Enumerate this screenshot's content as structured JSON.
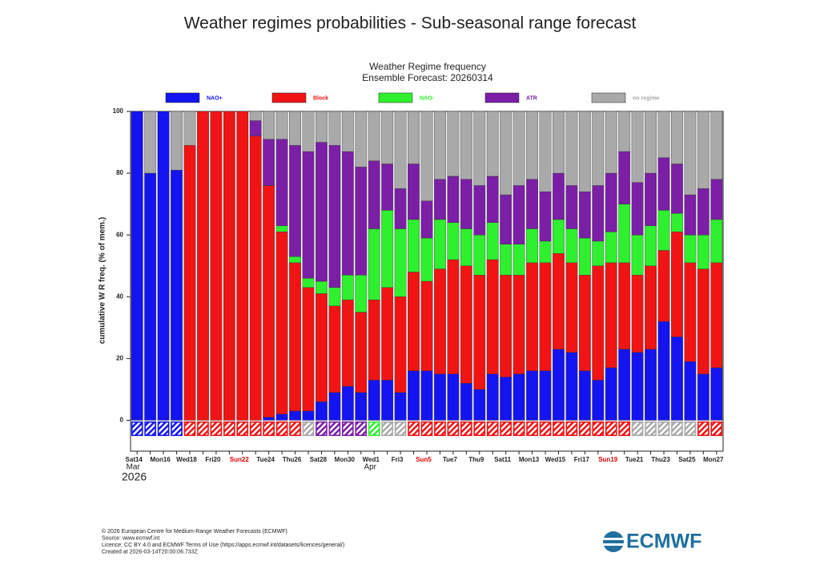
{
  "header": {
    "title": "Weather regimes probabilities - Sub-seasonal range forecast"
  },
  "chart_data": {
    "type": "stacked_bar",
    "title": "Weather Regime frequency",
    "subtitle": "Ensemble Forecast: 20260314",
    "ylabel": "cumulative W R freq. (% of mem.)",
    "ylim": [
      -10,
      100
    ],
    "yticks": [
      0,
      20,
      40,
      60,
      80,
      100
    ],
    "year": "2026",
    "months": [
      {
        "label": "Mar",
        "category_index": 0
      },
      {
        "label": "Apr",
        "category_index": 18
      }
    ],
    "categories": [
      "Sat14",
      null,
      "Mon16",
      null,
      "Wed18",
      null,
      "Fri20",
      null,
      "Sun22",
      null,
      "Tue24",
      null,
      "Thu26",
      null,
      "Sat28",
      null,
      "Mon30",
      null,
      "Wed1",
      null,
      "Fri3",
      null,
      "Sun5",
      null,
      "Tue7",
      null,
      "Thu9",
      null,
      "Sat11",
      null,
      "Mon13",
      null,
      "Wed15",
      null,
      "Fri17",
      null,
      "Sun19",
      null,
      "Tue21",
      null,
      "Thu23",
      null,
      "Sat25",
      null,
      "Mon27"
    ],
    "series": [
      {
        "name": "NAO+",
        "color": "#1414f0",
        "values": [
          100,
          80,
          100,
          81,
          0,
          0,
          0,
          0,
          0,
          0,
          1,
          2,
          3,
          3,
          6,
          9,
          11,
          9,
          13,
          13,
          9,
          16,
          16,
          15,
          15,
          12,
          10,
          15,
          14,
          15,
          16,
          16,
          23,
          22,
          16,
          13,
          17,
          23,
          22,
          23,
          32,
          27,
          19,
          15,
          17
        ]
      },
      {
        "name": "Block",
        "color": "#f01414",
        "values": [
          0,
          0,
          0,
          0,
          89,
          100,
          100,
          100,
          100,
          92,
          75,
          59,
          48,
          40,
          35,
          28,
          28,
          26,
          26,
          30,
          31,
          32,
          29,
          34,
          37,
          38,
          37,
          37,
          33,
          32,
          35,
          35,
          31,
          29,
          31,
          37,
          34,
          28,
          25,
          27,
          23,
          34,
          32,
          34,
          34
        ]
      },
      {
        "name": "NAO-",
        "color": "#2ef02e",
        "values": [
          0,
          0,
          0,
          0,
          0,
          0,
          0,
          0,
          0,
          0,
          0,
          2,
          2,
          3,
          4,
          6,
          8,
          12,
          23,
          25,
          22,
          17,
          14,
          16,
          12,
          12,
          13,
          12,
          10,
          10,
          11,
          7,
          11,
          11,
          12,
          8,
          10,
          19,
          13,
          13,
          13,
          6,
          9,
          11,
          14
        ]
      },
      {
        "name": "ATR",
        "color": "#7b1fa6",
        "values": [
          0,
          0,
          0,
          0,
          0,
          0,
          0,
          0,
          0,
          5,
          15,
          28,
          36,
          41,
          45,
          46,
          40,
          35,
          22,
          15,
          13,
          18,
          12,
          13,
          15,
          16,
          16,
          15,
          16,
          19,
          16,
          16,
          15,
          14,
          15,
          18,
          19,
          17,
          17,
          17,
          17,
          16,
          13,
          15,
          13
        ]
      },
      {
        "name": "no regime",
        "color": "#a9a9a9",
        "values": [
          0,
          20,
          0,
          19,
          11,
          0,
          0,
          0,
          0,
          3,
          9,
          9,
          11,
          13,
          10,
          11,
          13,
          18,
          16,
          17,
          25,
          17,
          29,
          22,
          21,
          22,
          24,
          21,
          27,
          24,
          22,
          26,
          20,
          24,
          26,
          24,
          20,
          13,
          23,
          20,
          15,
          17,
          27,
          25,
          22
        ]
      }
    ],
    "regime_boxes": [
      "NAO+",
      "NAO+",
      "NAO+",
      "NAO+",
      "Block",
      "Block",
      "Block",
      "Block",
      "Block",
      "Block",
      "Block",
      "Block",
      "Block",
      "no regime",
      "ATR",
      "ATR",
      "ATR",
      "ATR",
      "NAO-",
      "no regime",
      "no regime",
      "Block",
      "Block",
      "Block",
      "Block",
      "Block",
      "Block",
      "Block",
      "Block",
      "Block",
      "Block",
      "Block",
      "Block",
      "Block",
      "Block",
      "Block",
      "Block",
      "Block",
      "no regime",
      "no regime",
      "no regime",
      "no regime",
      "no regime",
      "Block",
      "Block"
    ]
  },
  "footer": {
    "lines": [
      "© 2026 European Centre for Medium-Range Weather Forecasts (ECMWF)",
      "Source: www.ecmwf.int",
      "Licence: CC BY 4.0 and ECMWF Terms of Use (https://apps.ecmwf.int/datasets/licences/general/)",
      "Created at 2026-03-14T20:00:06.733Z"
    ],
    "logo": "ECMWF"
  }
}
